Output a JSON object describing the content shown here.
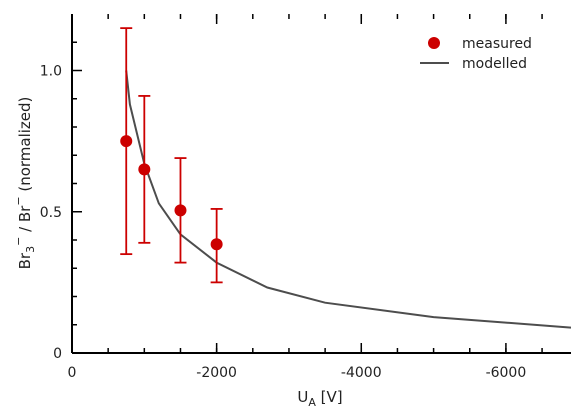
{
  "chart_data": {
    "type": "scatter",
    "xlabel": {
      "main": "U",
      "sub": "A",
      "unit": " [V]"
    },
    "ylabel": {
      "part1": "Br",
      "sub1": "3",
      "sup1": "−",
      "sep": " / ",
      "part2": "Br",
      "sup2": "−",
      "suffix": " (normalized)"
    },
    "xlim": [
      0,
      -6900
    ],
    "ylim": [
      0,
      1.2
    ],
    "x_ticks": [
      0,
      -2000,
      -4000,
      -6000
    ],
    "x_tick_labels": [
      "0",
      "-2000",
      "-4000",
      "-6000"
    ],
    "x_minor_ticks": [
      0,
      -500,
      -1000,
      -1500,
      -2000,
      -2500,
      -3000,
      -3500,
      -4000,
      -4500,
      -5000,
      -5500,
      -6000,
      -6500
    ],
    "y_ticks": [
      0,
      0.5,
      1.0
    ],
    "y_tick_labels": [
      "0",
      "0.5",
      "1.0"
    ],
    "y_minor_ticks": [
      0.1,
      0.2,
      0.3,
      0.4,
      0.6,
      0.7,
      0.8,
      0.9,
      1.1
    ],
    "legend_position": "top-right",
    "series": [
      {
        "name": "measured",
        "kind": "points-with-errorbars",
        "color": "#cc0000",
        "x": [
          -750,
          -1000,
          -1500,
          -2000
        ],
        "y": [
          0.75,
          0.65,
          0.505,
          0.385
        ],
        "y_low": [
          0.35,
          0.39,
          0.32,
          0.25
        ],
        "y_high": [
          1.15,
          0.91,
          0.69,
          0.51
        ]
      },
      {
        "name": "modelled",
        "kind": "line",
        "color": "#4d4d4d",
        "x": [
          -750,
          -800,
          -1000,
          -1200,
          -1500,
          -2000,
          -2700,
          -3500,
          -5000,
          -6900
        ],
        "y": [
          1.0,
          0.88,
          0.67,
          0.53,
          0.42,
          0.32,
          0.232,
          0.178,
          0.127,
          0.09
        ]
      }
    ]
  }
}
